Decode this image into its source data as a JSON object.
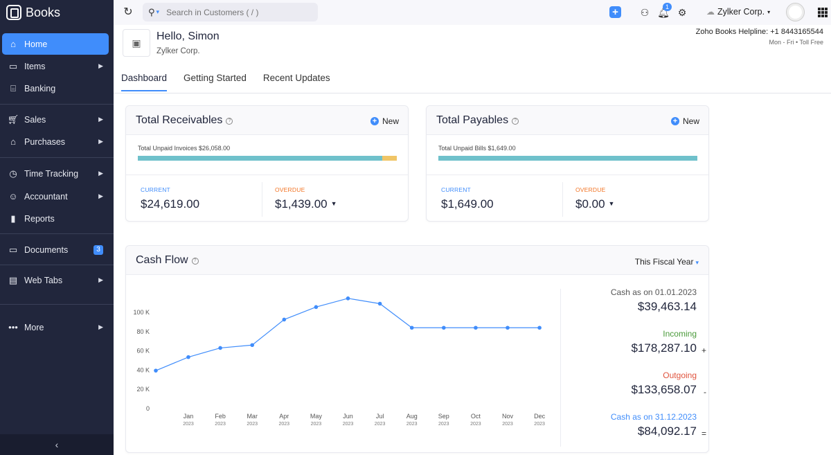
{
  "app": {
    "name": "Books"
  },
  "sidebar": {
    "items": [
      {
        "label": "Home",
        "icon": "home-icon",
        "active": true
      },
      {
        "label": "Items",
        "icon": "items-icon",
        "arrow": true
      },
      {
        "label": "Banking",
        "icon": "bank-icon"
      },
      {
        "label": "Sales",
        "icon": "cart-icon",
        "arrow": true
      },
      {
        "label": "Purchases",
        "icon": "bag-icon",
        "arrow": true
      },
      {
        "label": "Time Tracking",
        "icon": "timer-icon",
        "arrow": true
      },
      {
        "label": "Accountant",
        "icon": "accountant-icon",
        "arrow": true
      },
      {
        "label": "Reports",
        "icon": "reports-icon"
      },
      {
        "label": "Documents",
        "icon": "folder-icon",
        "badge": "3"
      },
      {
        "label": "Web Tabs",
        "icon": "webtabs-icon",
        "arrow": true
      },
      {
        "label": "More",
        "icon": "more-icon",
        "arrow": true
      }
    ]
  },
  "topbar": {
    "search_placeholder": "Search in Customers ( / )",
    "notification_count": "1",
    "org_name": "Zylker Corp."
  },
  "header": {
    "greeting": "Hello, Simon",
    "org": "Zylker Corp.",
    "helpline": "Zoho Books Helpline: +1 8443165544",
    "hours": "Mon - Fri • Toll Free"
  },
  "tabs": [
    {
      "label": "Dashboard",
      "active": true
    },
    {
      "label": "Getting Started"
    },
    {
      "label": "Recent Updates"
    }
  ],
  "receivables": {
    "title": "Total Receivables",
    "new_label": "New",
    "unpaid_label": "Total Unpaid Invoices $26,058.00",
    "progress_current": 0.9448,
    "current_label": "CURRENT",
    "current_amount": "$24,619.00",
    "overdue_label": "OVERDUE",
    "overdue_amount": "$1,439.00"
  },
  "payables": {
    "title": "Total Payables",
    "new_label": "New",
    "unpaid_label": "Total Unpaid Bills $1,649.00",
    "progress_current": 1.0,
    "current_label": "CURRENT",
    "current_amount": "$1,649.00",
    "overdue_label": "OVERDUE",
    "overdue_amount": "$0.00"
  },
  "cashflow": {
    "title": "Cash Flow",
    "period": "This Fiscal Year",
    "opening_label": "Cash as on 01.01.2023",
    "opening_value": "$39,463.14",
    "incoming_label": "Incoming",
    "incoming_value": "$178,287.10",
    "incoming_sign": "+",
    "outgoing_label": "Outgoing",
    "outgoing_value": "$133,658.07",
    "outgoing_sign": "-",
    "closing_label": "Cash as on 31.12.2023",
    "closing_value": "$84,092.17",
    "closing_sign": "=",
    "colors": {
      "incoming": "#4a9a3a",
      "outgoing": "#e0533d",
      "closing": "#408dfb",
      "line": "#408dfb"
    }
  },
  "chart_data": {
    "type": "line",
    "title": "Cash Flow",
    "categories": [
      "Jan",
      "Feb",
      "Mar",
      "Apr",
      "May",
      "Jun",
      "Jul",
      "Aug",
      "Sep",
      "Oct",
      "Nov",
      "Dec"
    ],
    "category_sublabels": [
      "2023",
      "2023",
      "2023",
      "2023",
      "2023",
      "2023",
      "2023",
      "2023",
      "2023",
      "2023",
      "2023",
      "2023"
    ],
    "initial_value": 39463,
    "values": [
      53500,
      63000,
      66000,
      92500,
      105500,
      114500,
      109000,
      84000,
      84000,
      84000,
      84000,
      84000
    ],
    "y_ticks": [
      "0",
      "20 K",
      "40 K",
      "60 K",
      "80 K",
      "100 K"
    ],
    "ylim": [
      0,
      100000
    ],
    "grid": false
  }
}
